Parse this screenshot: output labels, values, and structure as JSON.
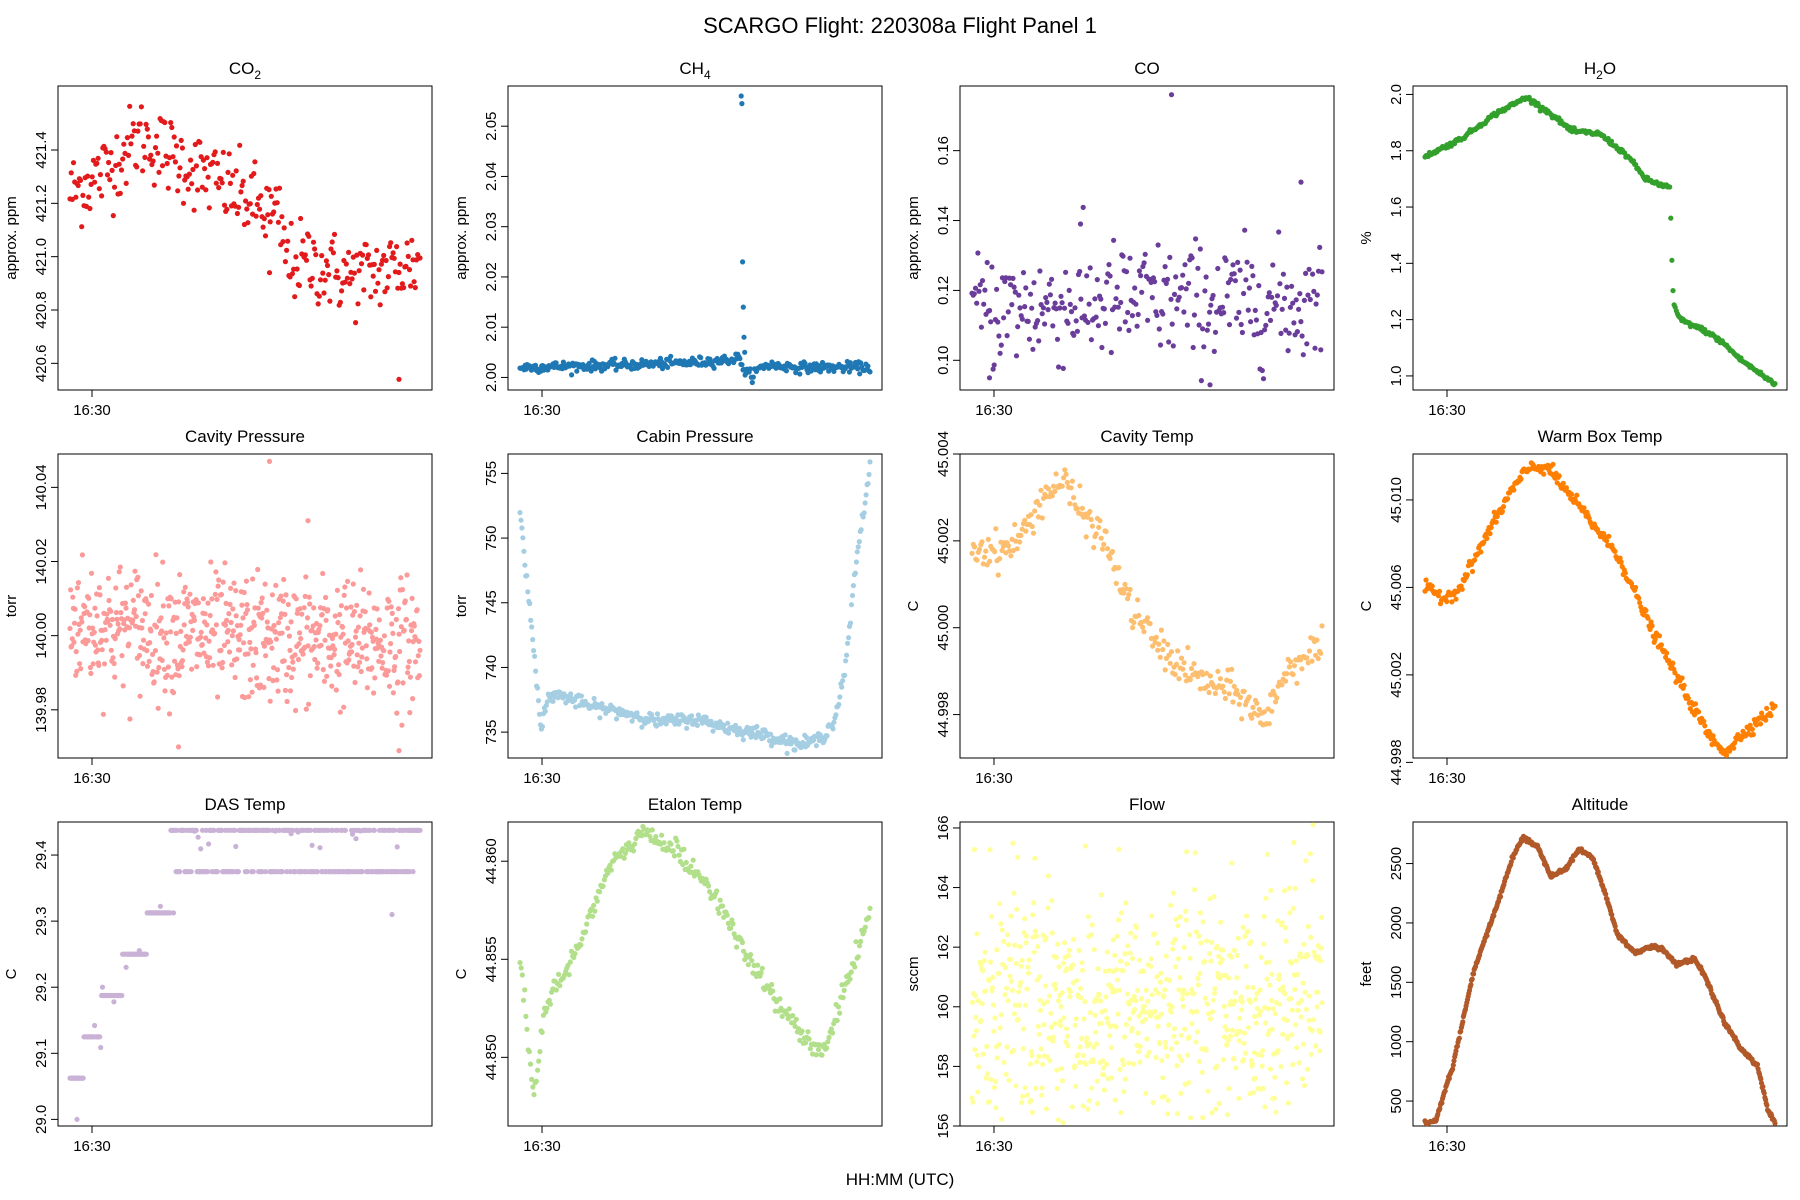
{
  "figure": {
    "title": "SCARGO Flight: 220308a   Flight  Panel 1",
    "xlabel": "HH:MM (UTC)",
    "time_tick_label": "16:30",
    "layout": "3 rows x 4 columns"
  },
  "chart_data": [
    {
      "id": "co2",
      "type": "scatter",
      "title": "CO",
      "title_sub": "2",
      "title_sub_after": "",
      "ylabel": "approx. ppm",
      "color": "#e31a1c",
      "yticks": [
        "420.6",
        "420.8",
        "421.0",
        "421.2",
        "421.4"
      ],
      "ylim": [
        420.5,
        421.64
      ],
      "outliers": [
        420.94,
        420.54
      ],
      "profile": [
        [
          0.0,
          421.24
        ],
        [
          0.1,
          421.32
        ],
        [
          0.2,
          421.45
        ],
        [
          0.3,
          421.37
        ],
        [
          0.42,
          421.28
        ],
        [
          0.55,
          421.18
        ],
        [
          0.6,
          421.13
        ],
        [
          0.62,
          420.98
        ],
        [
          0.68,
          420.98
        ],
        [
          0.8,
          420.92
        ],
        [
          0.9,
          420.95
        ],
        [
          1.0,
          420.98
        ]
      ],
      "noise": 0.075,
      "n": 300
    },
    {
      "id": "ch4",
      "type": "scatter",
      "title": "CH",
      "title_sub": "4",
      "title_sub_after": "",
      "ylabel": "approx. ppm",
      "color": "#1f78b4",
      "yticks": [
        "2.00",
        "2.01",
        "2.02",
        "2.03",
        "2.04",
        "2.05"
      ],
      "ylim": [
        1.9975,
        2.058
      ],
      "spike_values": [
        2.056,
        2.0545,
        2.023,
        2.014,
        2.008,
        2.005
      ],
      "profile": [
        [
          0.0,
          2.002
        ],
        [
          0.3,
          2.0025
        ],
        [
          0.5,
          2.003
        ],
        [
          0.6,
          2.0035
        ],
        [
          0.63,
          2.004
        ],
        [
          0.64,
          2.001
        ],
        [
          0.66,
          2.0005
        ],
        [
          0.7,
          2.0025
        ],
        [
          0.8,
          2.002
        ],
        [
          1.0,
          2.002
        ]
      ],
      "noise": 0.0005,
      "n": 340
    },
    {
      "id": "co",
      "type": "scatter",
      "title": "CO",
      "title_sub": "",
      "title_sub_after": "",
      "ylabel": "approx. ppm",
      "color": "#6a3d9a",
      "yticks": [
        "0.10",
        "0.12",
        "0.14",
        "0.16"
      ],
      "ylim": [
        0.0915,
        0.1785
      ],
      "outliers": [
        0.176,
        0.151,
        0.139,
        0.093,
        0.095
      ],
      "profile": [
        [
          0.0,
          0.114
        ],
        [
          0.5,
          0.117
        ],
        [
          1.0,
          0.116
        ]
      ],
      "noise": 0.0085,
      "n": 300
    },
    {
      "id": "h2o",
      "type": "scatter",
      "title": "H",
      "title_sub": "2",
      "title_sub_after": "O",
      "ylabel": "%",
      "color": "#33a02c",
      "yticks": [
        "1.0",
        "1.2",
        "1.4",
        "1.6",
        "1.8",
        "2.0"
      ],
      "ylim": [
        0.95,
        2.03
      ],
      "profile": [
        [
          0.0,
          1.78
        ],
        [
          0.1,
          1.84
        ],
        [
          0.2,
          1.93
        ],
        [
          0.29,
          1.99
        ],
        [
          0.35,
          1.94
        ],
        [
          0.42,
          1.87
        ],
        [
          0.5,
          1.86
        ],
        [
          0.58,
          1.78
        ],
        [
          0.63,
          1.7
        ],
        [
          0.67,
          1.68
        ],
        [
          0.7,
          1.67
        ],
        [
          0.705,
          1.42
        ],
        [
          0.71,
          1.25
        ],
        [
          0.73,
          1.2
        ],
        [
          0.8,
          1.16
        ],
        [
          0.85,
          1.12
        ],
        [
          0.9,
          1.06
        ],
        [
          1.0,
          0.97
        ]
      ],
      "noise": 0.004,
      "n": 320
    },
    {
      "id": "cavity-pressure",
      "type": "scatter",
      "title": "Cavity Pressure",
      "ylabel": "torr",
      "color": "#fb9a99",
      "yticks": [
        "139.98",
        "140.00",
        "140.02",
        "140.04"
      ],
      "ylim": [
        139.967,
        140.049
      ],
      "outliers": [
        140.047,
        139.969,
        139.97,
        140.031
      ],
      "profile": [
        [
          0.0,
          140.004
        ],
        [
          0.5,
          139.999
        ],
        [
          1.0,
          139.998
        ]
      ],
      "noise": 0.0085,
      "n": 620
    },
    {
      "id": "cabin-pressure",
      "type": "scatter",
      "title": "Cabin Pressure",
      "ylabel": "torr",
      "color": "#a6cee3",
      "yticks": [
        "735",
        "740",
        "745",
        "750",
        "755"
      ],
      "ylim": [
        733,
        756.5
      ],
      "profile": [
        [
          0.0,
          752
        ],
        [
          0.03,
          744
        ],
        [
          0.06,
          735.5
        ],
        [
          0.08,
          737.5
        ],
        [
          0.1,
          738
        ],
        [
          0.2,
          737
        ],
        [
          0.3,
          736.5
        ],
        [
          0.4,
          735.8
        ],
        [
          0.5,
          736
        ],
        [
          0.6,
          735.3
        ],
        [
          0.7,
          734.8
        ],
        [
          0.8,
          734
        ],
        [
          0.86,
          734.5
        ],
        [
          0.9,
          736
        ],
        [
          0.93,
          740
        ],
        [
          0.96,
          748
        ],
        [
          1.0,
          755.5
        ]
      ],
      "noise": 0.25,
      "n": 360
    },
    {
      "id": "cavity-temp",
      "type": "scatter",
      "title": "Cavity Temp",
      "ylabel": "C",
      "color": "#fdbf6f",
      "yticks": [
        "44.998",
        "45.000",
        "45.002",
        "45.004"
      ],
      "ylim": [
        44.997,
        45.004
      ],
      "profile": [
        [
          0.0,
          45.0018
        ],
        [
          0.1,
          45.0018
        ],
        [
          0.15,
          45.0022
        ],
        [
          0.2,
          45.003
        ],
        [
          0.26,
          45.0034
        ],
        [
          0.3,
          45.0028
        ],
        [
          0.38,
          45.002
        ],
        [
          0.45,
          45.0005
        ],
        [
          0.55,
          44.9994
        ],
        [
          0.65,
          44.9988
        ],
        [
          0.75,
          44.9985
        ],
        [
          0.8,
          44.9982
        ],
        [
          0.84,
          44.9978
        ],
        [
          0.88,
          44.9988
        ],
        [
          0.95,
          44.9994
        ],
        [
          1.0,
          44.9995
        ]
      ],
      "noise": 0.0002,
      "n": 280
    },
    {
      "id": "warm-box-temp",
      "type": "scatter",
      "title": "Warm Box Temp",
      "ylabel": "C",
      "color": "#ff7f00",
      "yticks": [
        "44.998",
        "45.002",
        "45.006",
        "45.010"
      ],
      "ylim": [
        44.9982,
        45.0121
      ],
      "profile": [
        [
          0.0,
          45.006
        ],
        [
          0.06,
          45.0055
        ],
        [
          0.1,
          45.006
        ],
        [
          0.18,
          45.0085
        ],
        [
          0.25,
          45.0105
        ],
        [
          0.3,
          45.0115
        ],
        [
          0.35,
          45.0115
        ],
        [
          0.45,
          45.0095
        ],
        [
          0.55,
          45.0075
        ],
        [
          0.65,
          45.004
        ],
        [
          0.75,
          45.001
        ],
        [
          0.82,
          44.999
        ],
        [
          0.86,
          44.9985
        ],
        [
          0.92,
          44.9995
        ],
        [
          1.0,
          45.0005
        ]
      ],
      "noise": 0.00015,
      "n": 340
    },
    {
      "id": "das-temp",
      "type": "scatter",
      "title": "DAS Temp",
      "ylabel": "C",
      "color": "#cab2d6",
      "yticks": [
        "29.0",
        "29.1",
        "29.2",
        "29.3",
        "29.4"
      ],
      "ylim": [
        28.99,
        29.45
      ],
      "levels": [
        [
          0.0,
          0.04,
          29.0625
        ],
        [
          0.04,
          0.09,
          29.125
        ],
        [
          0.09,
          0.15,
          29.1875
        ],
        [
          0.15,
          0.22,
          29.25
        ],
        [
          0.22,
          0.3,
          29.3125
        ],
        [
          0.3,
          1.0,
          29.375
        ]
      ],
      "upper_level": 29.4375,
      "n": 400
    },
    {
      "id": "etalon-temp",
      "type": "scatter",
      "title": "Etalon Temp",
      "ylabel": "C",
      "color": "#b2df8a",
      "yticks": [
        "44.850",
        "44.855",
        "44.860"
      ],
      "ylim": [
        44.8465,
        44.862
      ],
      "profile": [
        [
          0.0,
          44.855
        ],
        [
          0.04,
          44.848
        ],
        [
          0.07,
          44.8525
        ],
        [
          0.15,
          44.855
        ],
        [
          0.25,
          44.8595
        ],
        [
          0.35,
          44.8615
        ],
        [
          0.45,
          44.8605
        ],
        [
          0.55,
          44.8585
        ],
        [
          0.65,
          44.855
        ],
        [
          0.75,
          44.8525
        ],
        [
          0.83,
          44.8505
        ],
        [
          0.87,
          44.8505
        ],
        [
          0.93,
          44.8535
        ],
        [
          1.0,
          44.8575
        ]
      ],
      "noise": 0.00025,
      "n": 300
    },
    {
      "id": "flow",
      "type": "scatter",
      "title": "Flow",
      "ylabel": "sccm",
      "color": "#ffff99",
      "yticks": [
        "156",
        "158",
        "160",
        "162",
        "164",
        "166"
      ],
      "ylim": [
        156,
        166.2
      ],
      "profile": [
        [
          0.0,
          160
        ],
        [
          1.0,
          160
        ]
      ],
      "noise": 2.1,
      "n": 720
    },
    {
      "id": "altitude",
      "type": "scatter",
      "title": "Altitude",
      "ylabel": "feet",
      "color": "#b15928",
      "yticks": [
        "500",
        "1000",
        "1500",
        "2000",
        "2500"
      ],
      "ylim": [
        290,
        2850
      ],
      "profile": [
        [
          0.0,
          320
        ],
        [
          0.03,
          330
        ],
        [
          0.08,
          800
        ],
        [
          0.14,
          1600
        ],
        [
          0.2,
          2100
        ],
        [
          0.25,
          2550
        ],
        [
          0.28,
          2720
        ],
        [
          0.32,
          2650
        ],
        [
          0.36,
          2400
        ],
        [
          0.4,
          2450
        ],
        [
          0.44,
          2620
        ],
        [
          0.48,
          2550
        ],
        [
          0.52,
          2200
        ],
        [
          0.55,
          1900
        ],
        [
          0.6,
          1750
        ],
        [
          0.65,
          1800
        ],
        [
          0.68,
          1780
        ],
        [
          0.72,
          1650
        ],
        [
          0.77,
          1700
        ],
        [
          0.8,
          1550
        ],
        [
          0.85,
          1200
        ],
        [
          0.9,
          950
        ],
        [
          0.95,
          800
        ],
        [
          0.98,
          420
        ],
        [
          1.0,
          320
        ]
      ],
      "noise": 8,
      "n": 520
    }
  ]
}
